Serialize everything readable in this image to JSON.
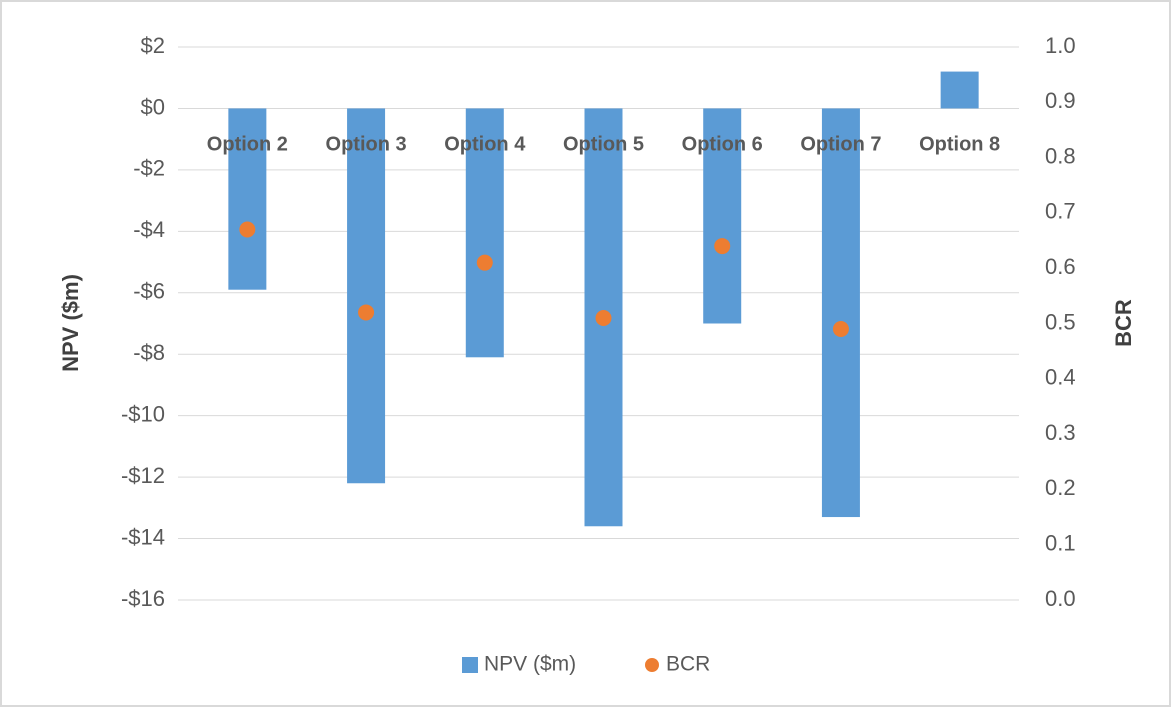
{
  "chart_data": {
    "type": "bar",
    "categories": [
      "Option 2",
      "Option 3",
      "Option 4",
      "Option 5",
      "Option 6",
      "Option 7",
      "Option 8"
    ],
    "series": [
      {
        "name": "NPV ($m)",
        "type": "bar",
        "color": "#5b9bd5",
        "values": [
          -5.9,
          -12.2,
          -8.1,
          -13.6,
          -7.0,
          -13.3,
          1.2
        ]
      },
      {
        "name": "BCR",
        "type": "scatter",
        "axis": "y2",
        "color": "#ed7d31",
        "values": [
          0.67,
          0.52,
          0.61,
          0.51,
          0.64,
          0.49,
          null
        ]
      }
    ],
    "ylabel": "NPV ($m)",
    "y2label": "BCR",
    "ylim": [
      -16,
      2
    ],
    "yticks": [
      {
        "value": 2,
        "label": "$2"
      },
      {
        "value": 0,
        "label": "$0"
      },
      {
        "value": -2,
        "label": "-$2"
      },
      {
        "value": -4,
        "label": "-$4"
      },
      {
        "value": -6,
        "label": "-$6"
      },
      {
        "value": -8,
        "label": "-$8"
      },
      {
        "value": -10,
        "label": "-$10"
      },
      {
        "value": -12,
        "label": "-$12"
      },
      {
        "value": -14,
        "label": "-$14"
      },
      {
        "value": -16,
        "label": "-$16"
      }
    ],
    "y2lim": [
      0,
      1
    ],
    "y2ticks": [
      {
        "value": 1,
        "label": "1.0"
      },
      0.9,
      0.8,
      0.7,
      0.6,
      0.5,
      0.4,
      0.3,
      0.2,
      0.1,
      {
        "value": 0,
        "label": "0.0"
      }
    ],
    "grid": true,
    "legend": "bottom"
  }
}
